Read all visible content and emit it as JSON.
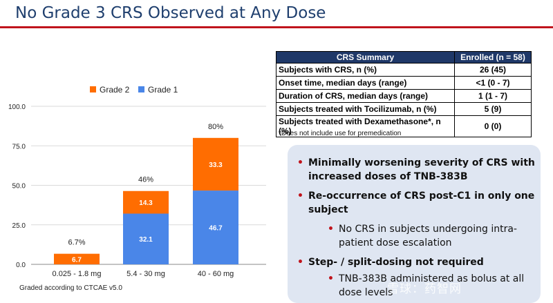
{
  "title": "No Grade 3 CRS Observed at Any Dose",
  "chart_data": {
    "type": "bar",
    "stacked": true,
    "categories": [
      "0.025 - 1.8 mg",
      "5.4 - 30 mg",
      "40 - 60 mg"
    ],
    "series": [
      {
        "name": "Grade 1",
        "values": [
          0,
          32.1,
          46.7
        ],
        "color": "#4a86e8"
      },
      {
        "name": "Grade 2",
        "values": [
          6.7,
          14.3,
          33.3
        ],
        "color": "#ff6d01"
      }
    ],
    "value_labels": [
      {
        "grade1": "",
        "grade2": "6.7"
      },
      {
        "grade1": "32.1",
        "grade2": "14.3"
      },
      {
        "grade1": "46.7",
        "grade2": "33.3"
      }
    ],
    "totals": [
      "6.7%",
      "46%",
      "80%"
    ],
    "y_ticks": [
      "0.0",
      "25.0",
      "50.0",
      "75.0",
      "100.0"
    ],
    "ylim": [
      0,
      100
    ],
    "legend_position": "top",
    "grid": true
  },
  "graded_note": "Graded according to CTCAE v5.0",
  "table": {
    "header": [
      "CRS Summary",
      "Enrolled (n = 58)"
    ],
    "rows": [
      [
        "Subjects with CRS, n (%)",
        "26 (45)"
      ],
      [
        "Onset time, median days (range)",
        "<1 (0 - 7)"
      ],
      [
        "Duration of CRS, median days (range)",
        "1 (1 - 7)"
      ],
      [
        "Subjects treated with Tocilizumab, n (%)",
        "5 (9)"
      ],
      [
        "Subjects treated with Dexamethasone*, n (%)",
        "0 (0)"
      ]
    ]
  },
  "footnote": "*Does not include use for premedication",
  "bullets": {
    "b1_line1": "Minimally worsening severity of CRS with",
    "b1_line2": "increased doses of TNB-383B",
    "b2_line1": "Re-occurrence of CRS post-C1 in only one",
    "b2_line2": "subject",
    "b3_line1": "No CRS in subjects undergoing intra-",
    "b3_line2": "patient dose escalation",
    "b4_line1": "Step- / split-dosing not required",
    "b5_line1": "TNB-383B administered as bolus at all",
    "b5_line2": "dose levels",
    "marker": "•"
  },
  "watermark": "雪球：药智网"
}
